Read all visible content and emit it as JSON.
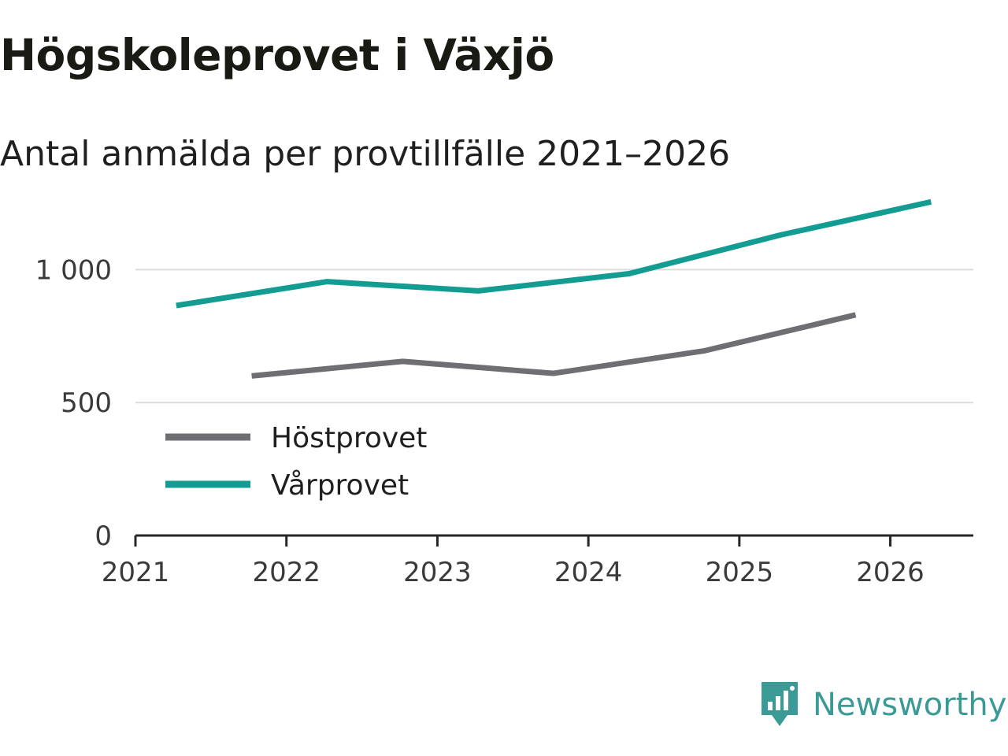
{
  "title": "Högskoleprovet i Växjö",
  "subtitle": "Antal anmälda per provtillfälle 2021–2026",
  "brand": {
    "name": "Newsworthy",
    "icon": "newsworthy-logo-icon",
    "color": "#3a9a95"
  },
  "chart_data": {
    "type": "line",
    "title": "Högskoleprovet i Växjö",
    "subtitle": "Antal anmälda per provtillfälle 2021–2026",
    "xlabel": "",
    "ylabel": "",
    "xlim": [
      2021,
      2026.55
    ],
    "ylim": [
      0,
      1250
    ],
    "x_ticks": [
      2021,
      2022,
      2023,
      2024,
      2025,
      2026
    ],
    "x_tick_labels": [
      "2021",
      "2022",
      "2023",
      "2024",
      "2025",
      "2026"
    ],
    "y_ticks": [
      0,
      500,
      1000
    ],
    "y_tick_labels": [
      "0",
      "500",
      "1 000"
    ],
    "grid": true,
    "legend_position": "bottom-left",
    "series": [
      {
        "name": "Höstprovet",
        "color": "#6e6e73",
        "x": [
          2021.77,
          2022.77,
          2023.77,
          2024.77,
          2025.77
        ],
        "values": [
          600,
          655,
          610,
          695,
          830
        ]
      },
      {
        "name": "Vårprovet",
        "color": "#139d92",
        "x": [
          2021.27,
          2022.27,
          2023.27,
          2024.27,
          2025.27,
          2026.27
        ],
        "values": [
          865,
          955,
          920,
          985,
          1130,
          1255
        ]
      }
    ]
  }
}
